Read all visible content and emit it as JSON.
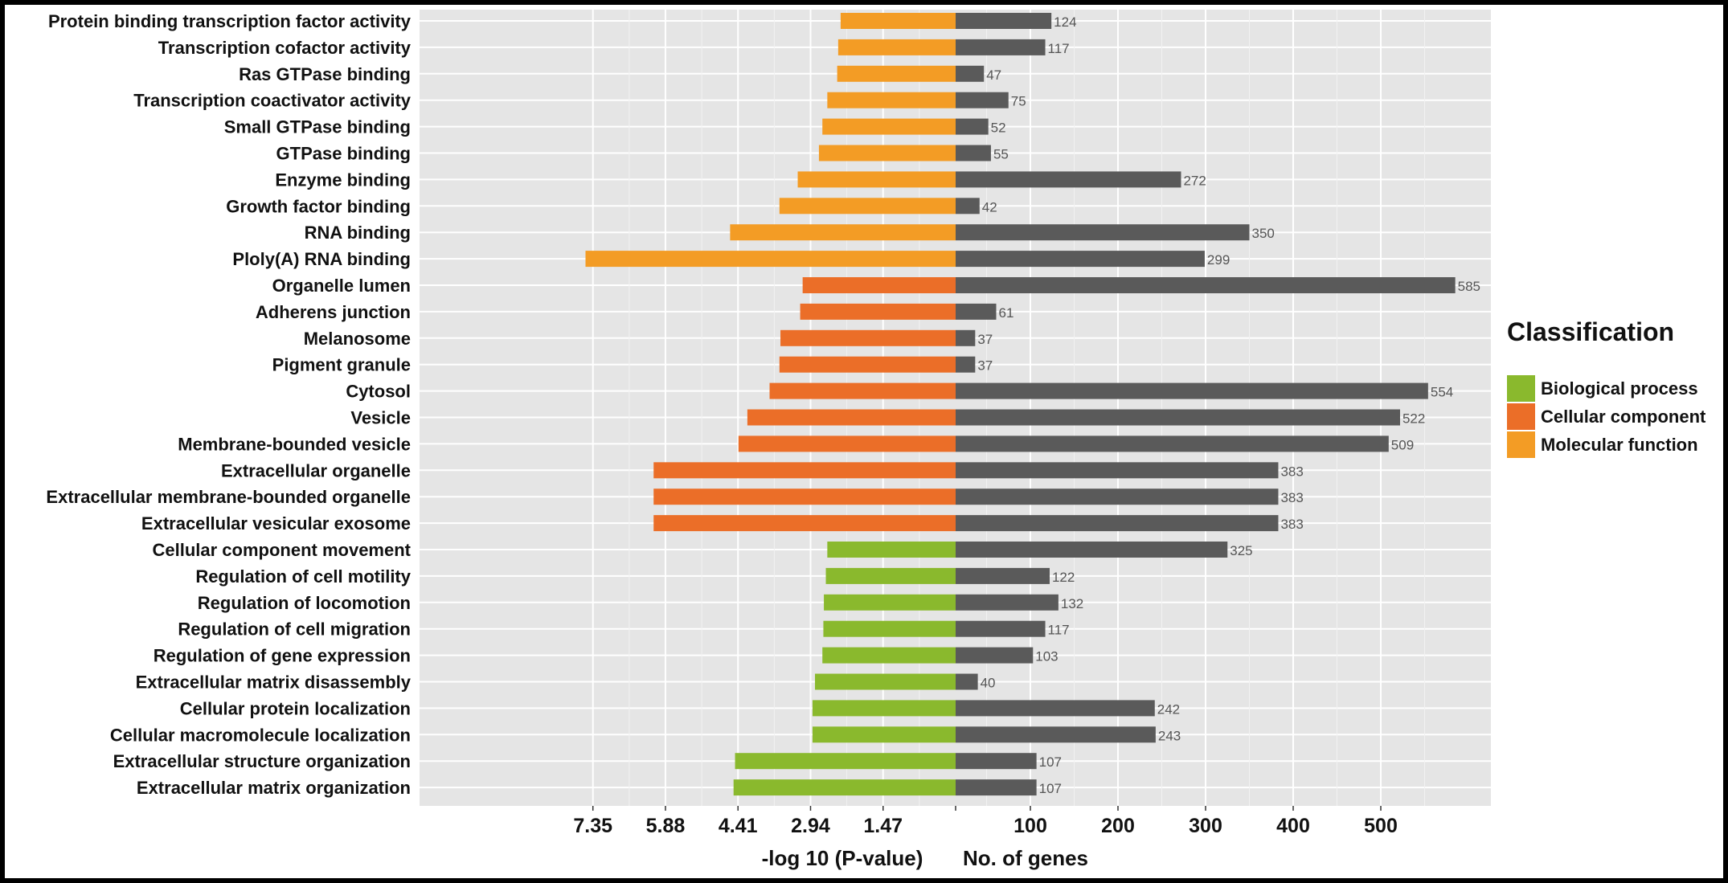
{
  "chart_data": {
    "type": "bar",
    "categories": [
      "Protein binding transcription factor activity",
      "Transcription cofactor activity",
      "Ras GTPase binding",
      "Transcription coactivator activity",
      "Small GTPase binding",
      "GTPase binding",
      "Enzyme binding",
      "Growth factor binding",
      "RNA binding",
      "Ploly(A) RNA binding",
      "Organelle lumen",
      "Adherens junction",
      "Melanosome",
      "Pigment granule",
      "Cytosol",
      "Vesicle",
      "Membrane-bounded vesicle",
      "Extracellular organelle",
      "Extracellular membrane-bounded organelle",
      "Extracellular vesicular exosome",
      "Cellular component movement",
      "Regulation of cell motility",
      "Regulation of locomotion",
      "Regulation of cell migration",
      "Regulation of gene expression",
      "Extracellular matrix disassembly",
      "Cellular protein localization",
      "Cellular macromolecule localization",
      "Extracellular structure organization",
      "Extracellular matrix organization"
    ],
    "classification": [
      "Molecular function",
      "Molecular function",
      "Molecular function",
      "Molecular function",
      "Molecular function",
      "Molecular function",
      "Molecular function",
      "Molecular function",
      "Molecular function",
      "Molecular function",
      "Cellular component",
      "Cellular component",
      "Cellular component",
      "Cellular component",
      "Cellular component",
      "Cellular component",
      "Cellular component",
      "Cellular component",
      "Cellular component",
      "Cellular component",
      "Biological process",
      "Biological process",
      "Biological process",
      "Biological process",
      "Biological process",
      "Biological process",
      "Biological process",
      "Biological process",
      "Biological process",
      "Biological process"
    ],
    "series": [
      {
        "name": "-log 10 (P-value)",
        "values": [
          2.33,
          2.38,
          2.4,
          2.6,
          2.7,
          2.77,
          3.2,
          3.57,
          4.57,
          7.5,
          3.1,
          3.15,
          3.55,
          3.57,
          3.77,
          4.22,
          4.4,
          6.12,
          6.12,
          6.12,
          2.6,
          2.63,
          2.67,
          2.68,
          2.7,
          2.85,
          2.9,
          2.9,
          4.47,
          4.5
        ]
      },
      {
        "name": "No. of genes",
        "values": [
          124,
          117,
          47,
          75,
          52,
          55,
          272,
          42,
          350,
          299,
          585,
          61,
          37,
          37,
          554,
          522,
          509,
          383,
          383,
          383,
          325,
          122,
          132,
          117,
          103,
          40,
          242,
          243,
          107,
          107
        ]
      }
    ],
    "left_axis": {
      "label": "-log 10 (P-value)",
      "ticks": [
        "7.35",
        "5.88",
        "4.41",
        "2.94",
        "1.47"
      ],
      "tick_values": [
        7.35,
        5.88,
        4.41,
        2.94,
        1.47
      ]
    },
    "right_axis": {
      "label": "No. of genes",
      "ticks": [
        "100",
        "200",
        "300",
        "400",
        "500"
      ],
      "tick_values": [
        100,
        200,
        300,
        400,
        500
      ]
    },
    "legend": {
      "title": "Classification",
      "position": "right",
      "items": [
        {
          "label": "Biological process",
          "color": "#8AB92D"
        },
        {
          "label": "Cellular component",
          "color": "#EB6E28"
        },
        {
          "label": "Molecular function",
          "color": "#F39C25"
        }
      ]
    },
    "colors": {
      "Biological process": "#8AB92D",
      "Cellular component": "#EB6E28",
      "Molecular function": "#F39C25",
      "genes": "#5A5A5A",
      "panel": "#E5E5E5",
      "grid": "#FFFFFF"
    },
    "grid": true
  }
}
